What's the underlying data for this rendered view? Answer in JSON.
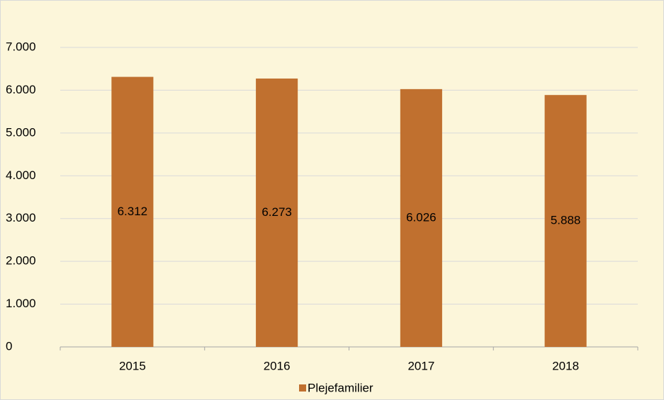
{
  "chart_data": {
    "type": "bar",
    "categories": [
      "2015",
      "2016",
      "2017",
      "2018"
    ],
    "series": [
      {
        "name": "Plejefamilier",
        "color": "#c0702f",
        "values": [
          6312,
          6273,
          6026,
          5888
        ],
        "value_labels": [
          "6.312",
          "6.273",
          "6.026",
          "5.888"
        ]
      }
    ],
    "ylim": [
      0,
      7000
    ],
    "yticks": [
      0,
      {
        "value": 1000,
        "label": "1.000"
      },
      {
        "value": 2000,
        "label": "2.000"
      },
      {
        "value": 3000,
        "label": "3.000"
      },
      {
        "value": 4000,
        "label": "4.000"
      },
      {
        "value": 5000,
        "label": "5.000"
      },
      {
        "value": 6000,
        "label": "6.000"
      },
      {
        "value": 7000,
        "label": "7.000"
      }
    ],
    "grid": true,
    "legend": "bottom"
  }
}
